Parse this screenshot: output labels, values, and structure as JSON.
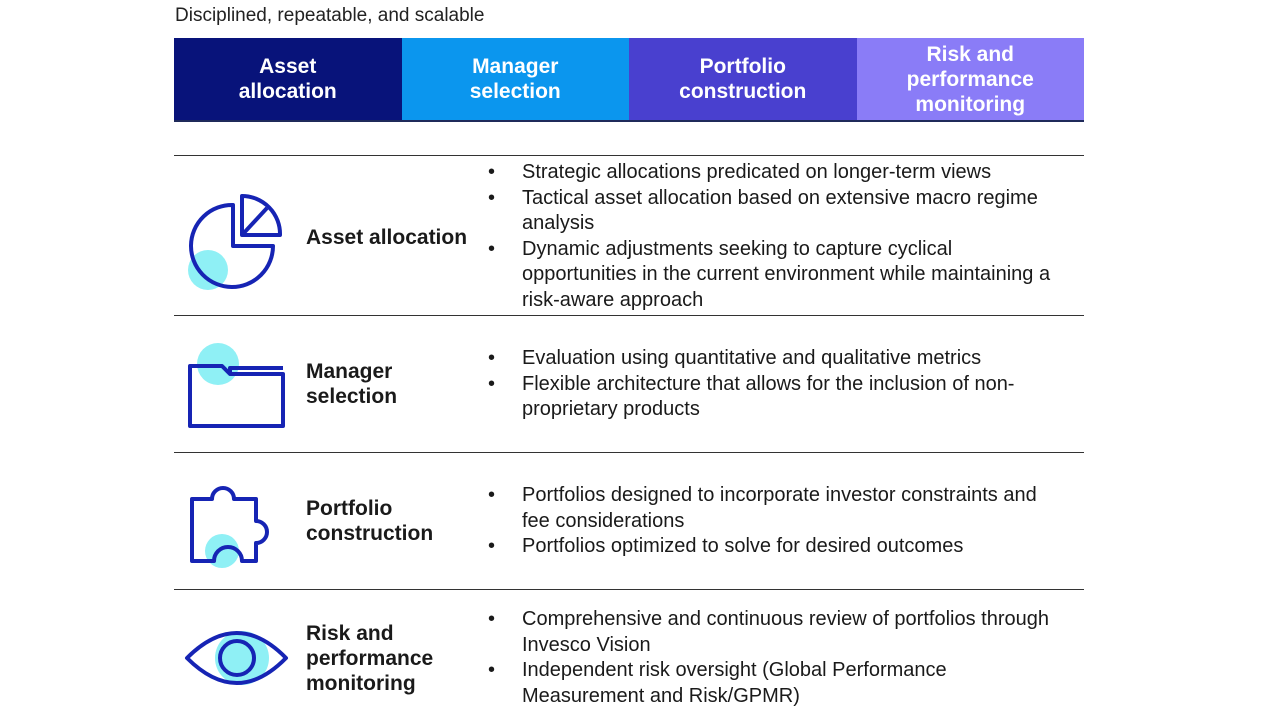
{
  "subtitle": "Disciplined, repeatable, and scalable",
  "colors": {
    "icon_stroke": "#1624b4",
    "icon_accent": "#8ff0f5",
    "banner": [
      "#08137a",
      "#0b96ee",
      "#4940cf",
      "#8a7cf7"
    ]
  },
  "banner": [
    {
      "lines": [
        "Asset",
        "allocation"
      ]
    },
    {
      "lines": [
        "Manager",
        "selection"
      ]
    },
    {
      "lines": [
        "Portfolio",
        "construction"
      ]
    },
    {
      "lines": [
        "Risk and",
        "performance",
        "monitoring"
      ]
    }
  ],
  "rows": [
    {
      "icon": "pie-chart-icon",
      "title_lines": [
        "Asset allocation"
      ],
      "bullets": [
        "Strategic allocations predicated on longer-term views",
        "Tactical asset allocation based on extensive macro regime analysis",
        "Dynamic adjustments seeking to capture cyclical opportunities in the current environment while maintaining a risk-aware approach"
      ]
    },
    {
      "icon": "folder-icon",
      "title_lines": [
        "Manager",
        "selection"
      ],
      "bullets": [
        "Evaluation using quantitative and qualitative metrics",
        "Flexible architecture that allows for the inclusion of non-proprietary products"
      ]
    },
    {
      "icon": "puzzle-piece-icon",
      "title_lines": [
        "Portfolio",
        "construction"
      ],
      "bullets": [
        "Portfolios designed to incorporate investor constraints and fee considerations",
        "Portfolios optimized to solve for desired outcomes"
      ]
    },
    {
      "icon": "eye-icon",
      "title_lines": [
        "Risk and",
        "performance",
        "monitoring"
      ],
      "bullets": [
        "Comprehensive and continuous review of portfolios through Invesco Vision",
        "Independent risk oversight (Global Performance Measurement and Risk/GPMR)"
      ]
    }
  ]
}
